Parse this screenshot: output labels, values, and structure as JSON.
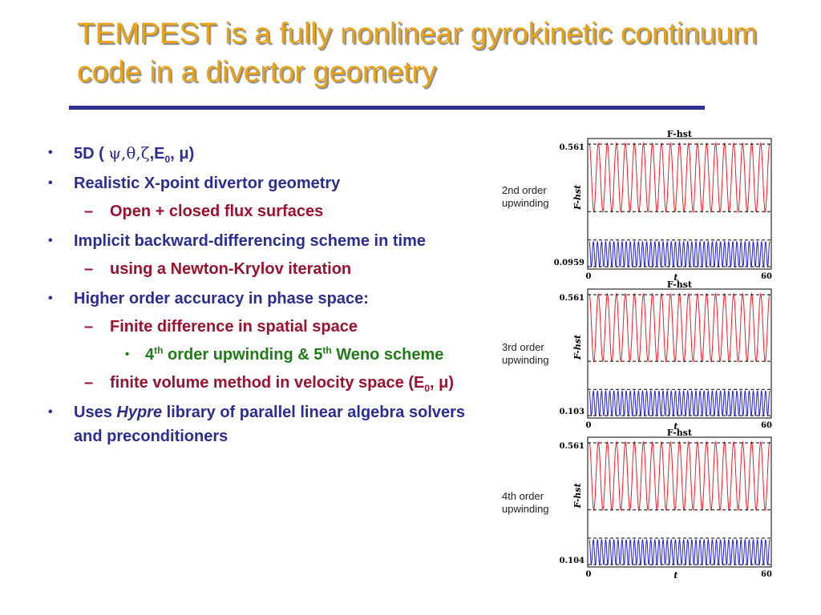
{
  "title": "TEMPEST is a fully nonlinear gyrokinetic continuum code in a divertor geometry",
  "bullets": {
    "b1_prefix": "5D ( ",
    "b1_greek": "ψ,θ,ζ",
    "b1_mid": ",E",
    "b1_sub": "0",
    "b1_suffix": ", μ)",
    "b2": "Realistic X-point divertor geometry",
    "b2_1": "Open + closed flux surfaces",
    "b3": "Implicit backward-differencing scheme in time",
    "b3_1": "using a Newton-Krylov iteration",
    "b4": "Higher order accuracy in phase space:",
    "b4_1": "Finite difference in spatial space",
    "b4_1_1_a": "4",
    "b4_1_1_sup1": "th",
    "b4_1_1_b": " order upwinding & 5",
    "b4_1_1_sup2": "th",
    "b4_1_1_c": " Weno scheme",
    "b4_2_a": "finite volume method in velocity space (E",
    "b4_2_sub": "0",
    "b4_2_b": ", μ)",
    "b5_a": "Uses ",
    "b5_em": "Hypre",
    "b5_b": " library of parallel linear algebra solvers and preconditioners"
  },
  "markers": {
    "l1": "•",
    "l2": "–",
    "l3": "•"
  },
  "colors": {
    "title": "#e8a317",
    "rule": "#2e3192",
    "level1": "#2b2d90",
    "level2": "#9a1230",
    "level3": "#1e7c16",
    "red_trace": "#e8202a",
    "blue_trace": "#2020d8"
  },
  "chart_data": [
    {
      "type": "line",
      "title": "F-hst",
      "xlabel": "t",
      "ylabel": "F-hst",
      "side_label": [
        "2nd order",
        "upwinding"
      ],
      "xticks": [
        "0",
        "60"
      ],
      "yticks": [
        "0.561",
        "0.0959"
      ],
      "xlim": [
        0,
        60
      ],
      "ylim": [
        0.0959,
        0.561
      ]
    },
    {
      "type": "line",
      "title": "F-hst",
      "xlabel": "t",
      "ylabel": "F-hst",
      "side_label": [
        "3rd order",
        "upwinding"
      ],
      "xticks": [
        "0",
        "60"
      ],
      "yticks": [
        "0.561",
        "0.103"
      ],
      "xlim": [
        0,
        60
      ],
      "ylim": [
        0.103,
        0.561
      ]
    },
    {
      "type": "line",
      "title": "F-hst",
      "xlabel": "t",
      "ylabel": "F-hst",
      "side_label": [
        "4th order",
        "upwinding"
      ],
      "xticks": [
        "0",
        "60"
      ],
      "yticks": [
        "0.561",
        "0.104"
      ],
      "xlim": [
        0,
        60
      ],
      "ylim": [
        0.104,
        0.561
      ]
    }
  ]
}
